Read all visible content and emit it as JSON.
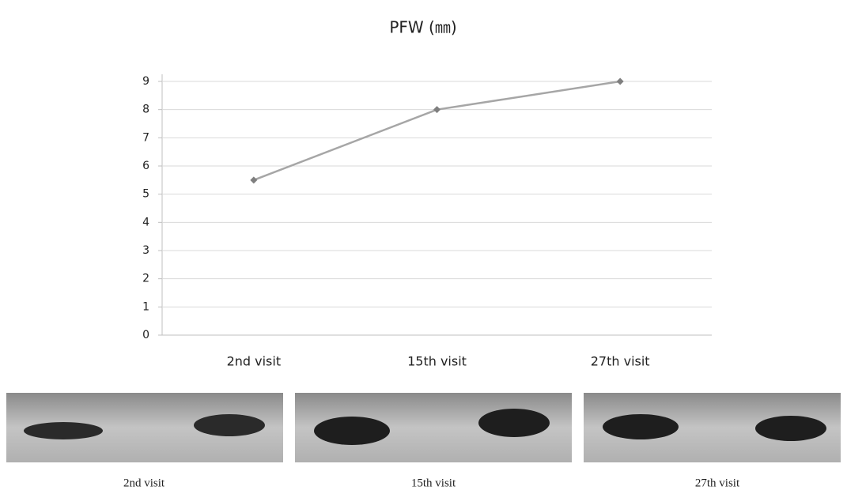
{
  "chart_data": {
    "type": "line",
    "title": "PFW (㎜)",
    "categories": [
      "2nd visit",
      "15th visit",
      "27th visit"
    ],
    "values": [
      5.5,
      8,
      9
    ],
    "color": "#a6a6a6",
    "marker_color": "#7f7f7f",
    "ylim": [
      0,
      9
    ],
    "yticks": [
      0,
      1,
      2,
      3,
      4,
      5,
      6,
      7,
      8,
      9
    ],
    "grid": true
  },
  "photo_captions": [
    "2nd visit",
    "15th visit",
    "27th visit"
  ]
}
